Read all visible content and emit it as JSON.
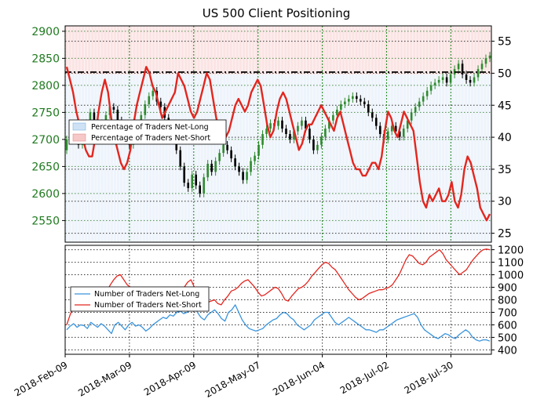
{
  "chart_data": [
    {
      "type": "line",
      "title": "US 500 Client Positioning",
      "x_ticks": [
        "2018-Feb-09",
        "2018-Mar-09",
        "2018-Apr-09",
        "2018-May-07",
        "2018-Jun-04",
        "2018-Jul-02",
        "2018-Jul-30"
      ],
      "price_axis": {
        "ticks": [
          2550,
          2600,
          2650,
          2700,
          2750,
          2800,
          2850,
          2900
        ],
        "range": [
          2510,
          2910
        ]
      },
      "percent_axis": {
        "ticks": [
          25,
          30,
          35,
          40,
          45,
          50,
          55
        ],
        "range": [
          23.6,
          57.4
        ],
        "reference": 50
      },
      "legend": [
        "Percentage of Traders Net-Long",
        "Percentage of Traders Net-Short"
      ],
      "net_short_percent": [
        51,
        49,
        47,
        44,
        42,
        40,
        38,
        37,
        37,
        40,
        44,
        47,
        49,
        47,
        43,
        40,
        38,
        36,
        35,
        36,
        38,
        42,
        45,
        47,
        49,
        51,
        50,
        48,
        47,
        45,
        43,
        44,
        45,
        46,
        47,
        50,
        49,
        48,
        46,
        44,
        43,
        44,
        46,
        48,
        50,
        49,
        46,
        43,
        41,
        40,
        40,
        41,
        43,
        45,
        46,
        45,
        44,
        45,
        47,
        48,
        49,
        48,
        45,
        42,
        40,
        41,
        44,
        46,
        47,
        46,
        44,
        42,
        40,
        38,
        39,
        41,
        42,
        42,
        43,
        44,
        45,
        44,
        43,
        42,
        41,
        43,
        44,
        42,
        40,
        38,
        36,
        35,
        35,
        34,
        34,
        35,
        36,
        36,
        35,
        37,
        41,
        44,
        43,
        41,
        40,
        42,
        44,
        43,
        42,
        41,
        37,
        33,
        30,
        29,
        31,
        30,
        31,
        32,
        30,
        30,
        31,
        33,
        30,
        29,
        31,
        35,
        37,
        36,
        34,
        32,
        29,
        28,
        27,
        28
      ],
      "price_candles": [
        {
          "o": 2680,
          "c": 2700
        },
        {
          "o": 2700,
          "c": 2720
        },
        {
          "o": 2725,
          "c": 2710
        },
        {
          "o": 2710,
          "c": 2690
        },
        {
          "o": 2690,
          "c": 2705
        },
        {
          "o": 2705,
          "c": 2730
        },
        {
          "o": 2730,
          "c": 2750
        },
        {
          "o": 2750,
          "c": 2735
        },
        {
          "o": 2735,
          "c": 2715
        },
        {
          "o": 2715,
          "c": 2730
        },
        {
          "o": 2730,
          "c": 2745
        },
        {
          "o": 2745,
          "c": 2760
        },
        {
          "o": 2760,
          "c": 2755
        },
        {
          "o": 2755,
          "c": 2735
        },
        {
          "o": 2735,
          "c": 2720
        },
        {
          "o": 2720,
          "c": 2700
        },
        {
          "o": 2700,
          "c": 2690
        },
        {
          "o": 2690,
          "c": 2705
        },
        {
          "o": 2705,
          "c": 2725
        },
        {
          "o": 2725,
          "c": 2745
        },
        {
          "o": 2745,
          "c": 2765
        },
        {
          "o": 2765,
          "c": 2780
        },
        {
          "o": 2780,
          "c": 2790
        },
        {
          "o": 2790,
          "c": 2770
        },
        {
          "o": 2770,
          "c": 2760
        },
        {
          "o": 2760,
          "c": 2740
        },
        {
          "o": 2740,
          "c": 2725
        },
        {
          "o": 2725,
          "c": 2705
        },
        {
          "o": 2705,
          "c": 2680
        },
        {
          "o": 2680,
          "c": 2650
        },
        {
          "o": 2650,
          "c": 2620
        },
        {
          "o": 2620,
          "c": 2610
        },
        {
          "o": 2610,
          "c": 2635
        },
        {
          "o": 2635,
          "c": 2615
        },
        {
          "o": 2615,
          "c": 2600
        },
        {
          "o": 2600,
          "c": 2630
        },
        {
          "o": 2630,
          "c": 2655
        },
        {
          "o": 2655,
          "c": 2640
        },
        {
          "o": 2640,
          "c": 2660
        },
        {
          "o": 2660,
          "c": 2675
        },
        {
          "o": 2675,
          "c": 2690
        },
        {
          "o": 2690,
          "c": 2680
        },
        {
          "o": 2680,
          "c": 2665
        },
        {
          "o": 2665,
          "c": 2650
        },
        {
          "o": 2650,
          "c": 2640
        },
        {
          "o": 2640,
          "c": 2625
        },
        {
          "o": 2625,
          "c": 2640
        },
        {
          "o": 2640,
          "c": 2660
        },
        {
          "o": 2660,
          "c": 2670
        },
        {
          "o": 2670,
          "c": 2690
        },
        {
          "o": 2690,
          "c": 2710
        },
        {
          "o": 2710,
          "c": 2720
        },
        {
          "o": 2720,
          "c": 2730
        },
        {
          "o": 2730,
          "c": 2725
        },
        {
          "o": 2725,
          "c": 2735
        },
        {
          "o": 2735,
          "c": 2720
        },
        {
          "o": 2720,
          "c": 2710
        },
        {
          "o": 2710,
          "c": 2700
        },
        {
          "o": 2700,
          "c": 2715
        },
        {
          "o": 2715,
          "c": 2725
        },
        {
          "o": 2725,
          "c": 2735
        },
        {
          "o": 2735,
          "c": 2720
        },
        {
          "o": 2720,
          "c": 2700
        },
        {
          "o": 2700,
          "c": 2680
        },
        {
          "o": 2680,
          "c": 2690
        },
        {
          "o": 2690,
          "c": 2705
        },
        {
          "o": 2705,
          "c": 2720
        },
        {
          "o": 2720,
          "c": 2735
        },
        {
          "o": 2735,
          "c": 2745
        },
        {
          "o": 2745,
          "c": 2755
        },
        {
          "o": 2755,
          "c": 2765
        },
        {
          "o": 2765,
          "c": 2770
        },
        {
          "o": 2770,
          "c": 2775
        },
        {
          "o": 2775,
          "c": 2780
        },
        {
          "o": 2780,
          "c": 2775
        },
        {
          "o": 2775,
          "c": 2770
        },
        {
          "o": 2770,
          "c": 2765
        },
        {
          "o": 2765,
          "c": 2750
        },
        {
          "o": 2750,
          "c": 2740
        },
        {
          "o": 2740,
          "c": 2725
        },
        {
          "o": 2725,
          "c": 2710
        },
        {
          "o": 2710,
          "c": 2700
        },
        {
          "o": 2700,
          "c": 2715
        },
        {
          "o": 2715,
          "c": 2725
        },
        {
          "o": 2725,
          "c": 2715
        },
        {
          "o": 2715,
          "c": 2705
        },
        {
          "o": 2705,
          "c": 2720
        },
        {
          "o": 2720,
          "c": 2735
        },
        {
          "o": 2735,
          "c": 2750
        },
        {
          "o": 2750,
          "c": 2760
        },
        {
          "o": 2760,
          "c": 2770
        },
        {
          "o": 2770,
          "c": 2780
        },
        {
          "o": 2780,
          "c": 2790
        },
        {
          "o": 2790,
          "c": 2800
        },
        {
          "o": 2800,
          "c": 2805
        },
        {
          "o": 2805,
          "c": 2810
        },
        {
          "o": 2810,
          "c": 2815
        },
        {
          "o": 2815,
          "c": 2805
        },
        {
          "o": 2805,
          "c": 2820
        },
        {
          "o": 2820,
          "c": 2830
        },
        {
          "o": 2830,
          "c": 2840
        },
        {
          "o": 2840,
          "c": 2820
        },
        {
          "o": 2820,
          "c": 2810
        },
        {
          "o": 2810,
          "c": 2805
        },
        {
          "o": 2805,
          "c": 2815
        },
        {
          "o": 2815,
          "c": 2830
        },
        {
          "o": 2830,
          "c": 2840
        },
        {
          "o": 2840,
          "c": 2850
        },
        {
          "o": 2850,
          "c": 2855
        }
      ]
    },
    {
      "type": "line",
      "y_axis": {
        "ticks": [
          400,
          500,
          600,
          700,
          800,
          900,
          1000,
          1100,
          1200
        ],
        "range": [
          365,
          1235
        ]
      },
      "legend": [
        "Number of Traders Net-Long",
        "Number of Traders Net-Short"
      ],
      "series": [
        {
          "name": "Number of Traders Net-Long",
          "color": "#3a94dc",
          "values": [
            560,
            590,
            610,
            580,
            600,
            595,
            570,
            620,
            600,
            580,
            610,
            590,
            560,
            530,
            600,
            620,
            590,
            560,
            600,
            620,
            590,
            600,
            580,
            550,
            570,
            600,
            620,
            640,
            660,
            650,
            680,
            670,
            700,
            710,
            690,
            700,
            720,
            760,
            700,
            660,
            640,
            680,
            700,
            720,
            690,
            650,
            630,
            700,
            720,
            760,
            700,
            640,
            600,
            570,
            560,
            550,
            560,
            570,
            600,
            620,
            640,
            650,
            680,
            700,
            690,
            660,
            640,
            600,
            580,
            560,
            580,
            600,
            640,
            660,
            680,
            700,
            700,
            660,
            620,
            600,
            620,
            640,
            660,
            640,
            620,
            600,
            580,
            560,
            560,
            550,
            540,
            560,
            560,
            580,
            600,
            620,
            640,
            650,
            660,
            670,
            680,
            690,
            660,
            600,
            560,
            540,
            520,
            500,
            490,
            510,
            530,
            520,
            500,
            490,
            520,
            540,
            560,
            540,
            500,
            480,
            470,
            480,
            480,
            470
          ]
        },
        {
          "name": "Number of Traders Net-Short",
          "color": "#e3261f",
          "values": [
            600,
            680,
            740,
            760,
            800,
            760,
            780,
            800,
            820,
            810,
            790,
            830,
            870,
            920,
            960,
            990,
            1000,
            960,
            920,
            900,
            880,
            850,
            830,
            800,
            780,
            800,
            820,
            850,
            870,
            820,
            790,
            760,
            770,
            810,
            850,
            900,
            940,
            960,
            900,
            860,
            820,
            800,
            780,
            790,
            800,
            770,
            760,
            800,
            830,
            870,
            880,
            900,
            930,
            950,
            960,
            930,
            900,
            860,
            830,
            840,
            860,
            880,
            900,
            890,
            850,
            800,
            790,
            830,
            860,
            890,
            900,
            920,
            950,
            990,
            1020,
            1050,
            1080,
            1100,
            1090,
            1060,
            1040,
            1000,
            960,
            920,
            880,
            850,
            820,
            800,
            810,
            830,
            850,
            860,
            870,
            880,
            880,
            890,
            900,
            920,
            960,
            1000,
            1060,
            1120,
            1160,
            1150,
            1120,
            1090,
            1080,
            1100,
            1140,
            1160,
            1180,
            1200,
            1170,
            1120,
            1090,
            1060,
            1030,
            1000,
            1020,
            1040,
            1080,
            1120,
            1150,
            1180,
            1200,
            1205,
            1200
          ]
        }
      ]
    }
  ]
}
